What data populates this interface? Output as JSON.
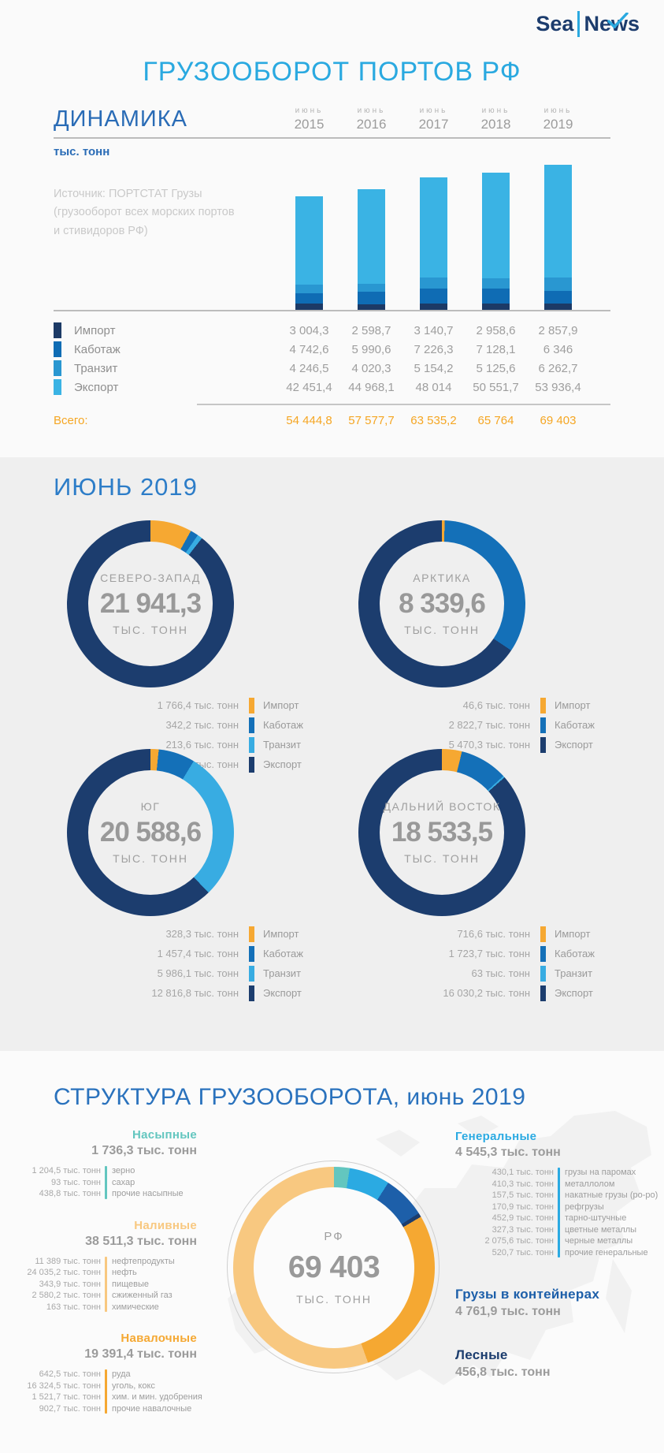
{
  "brand": {
    "sea": "Sea",
    "news": "News"
  },
  "page_title": "ГРУЗООБОРОТ ПОРТОВ РФ",
  "palette": {
    "bar": {
      "import": "#1c3a66",
      "cabotage": "#0f6cb4",
      "transit": "#2997d1",
      "export": "#3ab3e4"
    },
    "region": {
      "import": "#f6a832",
      "cabotage": "#1470b8",
      "transit": "#38ace2",
      "export": "#1c3d6e"
    },
    "accent_orange": "#f5a623"
  },
  "dynamics": {
    "title": "ДИНАМИКА",
    "unit": "тыс. тонн",
    "source": "Источник: ПОРТСТАТ Грузы\n(грузооборот всех морских портов\nи стивидоров РФ)",
    "month_label": "июнь",
    "years": [
      "2015",
      "2016",
      "2017",
      "2018",
      "2019"
    ],
    "total_label": "Всего:"
  },
  "june": {
    "title": "ИЮНЬ 2019",
    "unit": "ТЫС. ТОНН"
  },
  "structure": {
    "title": "СТРУКТУРА ГРУЗООБОРОТА, июнь 2019",
    "center": {
      "label": "РФ",
      "value": "69 403",
      "unit": "ТЫС. ТОНН"
    }
  },
  "chart_data": [
    {
      "id": "dynamics-bars",
      "type": "bar",
      "stacked": true,
      "title": "ДИНАМИКА",
      "ylabel": "тыс. тонн",
      "categories": [
        "июнь 2015",
        "июнь 2016",
        "июнь 2017",
        "июнь 2018",
        "июнь 2019"
      ],
      "series": [
        {
          "key": "import",
          "name": "Импорт",
          "values": [
            3004.3,
            2598.7,
            3140.7,
            2958.6,
            2857.9
          ],
          "display": [
            "3 004,3",
            "2 598,7",
            "3 140,7",
            "2 958,6",
            "2 857,9"
          ]
        },
        {
          "key": "cabotage",
          "name": "Каботаж",
          "values": [
            4742.6,
            5990.6,
            7226.3,
            7128.1,
            6346
          ],
          "display": [
            "4 742,6",
            "5 990,6",
            "7 226,3",
            "7 128,1",
            "6 346"
          ]
        },
        {
          "key": "transit",
          "name": "Транзит",
          "values": [
            4246.5,
            4020.3,
            5154.2,
            5125.6,
            6262.7
          ],
          "display": [
            "4 246,5",
            "4 020,3",
            "5 154,2",
            "5 125,6",
            "6 262,7"
          ]
        },
        {
          "key": "export",
          "name": "Экспорт",
          "values": [
            42451.4,
            44968.1,
            48014,
            50551.7,
            53936.4
          ],
          "display": [
            "42 451,4",
            "44 968,1",
            "48 014",
            "50 551,7",
            "53 936,4"
          ]
        }
      ],
      "totals": {
        "label": "Всего:",
        "values": [
          54444.8,
          57577.7,
          63535.2,
          65764,
          69403
        ],
        "display": [
          "54 444,8",
          "57 577,7",
          "63 535,2",
          "65 764",
          "69 403"
        ]
      }
    },
    {
      "id": "region-donuts",
      "type": "pie",
      "unit": "ТЫС. ТОНН",
      "regions": [
        {
          "name": "СЕВЕРО-ЗАПАД",
          "total": 21941.3,
          "total_display": "21 941,3",
          "segments": [
            {
              "key": "import",
              "name": "Импорт",
              "value": 1766.4,
              "display": "1 766,4 тыс. тонн"
            },
            {
              "key": "cabotage",
              "name": "Каботаж",
              "value": 342.2,
              "display": "342,2 тыс. тонн"
            },
            {
              "key": "transit",
              "name": "Транзит",
              "value": 213.6,
              "display": "213,6 тыс. тонн"
            },
            {
              "key": "export",
              "name": "Экспорт",
              "value": 19619.1,
              "display": "19 619,1 тыс. тонн"
            }
          ]
        },
        {
          "name": "АРКТИКА",
          "total": 8339.6,
          "total_display": "8 339,6",
          "segments": [
            {
              "key": "import",
              "name": "Импорт",
              "value": 46.6,
              "display": "46,6 тыс. тонн"
            },
            {
              "key": "cabotage",
              "name": "Каботаж",
              "value": 2822.7,
              "display": "2 822,7 тыс. тонн"
            },
            {
              "key": "export",
              "name": "Экспорт",
              "value": 5470.3,
              "display": "5 470,3 тыс. тонн"
            }
          ]
        },
        {
          "name": "ЮГ",
          "total": 20588.6,
          "total_display": "20 588,6",
          "segments": [
            {
              "key": "import",
              "name": "Импорт",
              "value": 328.3,
              "display": "328,3 тыс. тонн"
            },
            {
              "key": "cabotage",
              "name": "Каботаж",
              "value": 1457.4,
              "display": "1 457,4 тыс. тонн"
            },
            {
              "key": "transit",
              "name": "Транзит",
              "value": 5986.1,
              "display": "5 986,1 тыс. тонн"
            },
            {
              "key": "export",
              "name": "Экспорт",
              "value": 12816.8,
              "display": "12 816,8 тыс. тонн"
            }
          ]
        },
        {
          "name": "ДАЛЬНИЙ ВОСТОК",
          "total": 18533.5,
          "total_display": "18 533,5",
          "segments": [
            {
              "key": "import",
              "name": "Импорт",
              "value": 716.6,
              "display": "716,6 тыс. тонн"
            },
            {
              "key": "cabotage",
              "name": "Каботаж",
              "value": 1723.7,
              "display": "1 723,7 тыс. тонн"
            },
            {
              "key": "transit",
              "name": "Транзит",
              "value": 63,
              "display": "63 тыс. тонн"
            },
            {
              "key": "export",
              "name": "Экспорт",
              "value": 16030.2,
              "display": "16 030,2 тыс. тонн"
            }
          ]
        }
      ]
    },
    {
      "id": "structure-donut",
      "type": "pie",
      "title": "СТРУКТУРА ГРУЗООБОРОТА, июнь 2019",
      "center_label": "РФ",
      "total": 69403,
      "total_display": "69 403",
      "unit": "ТЫС. ТОНН",
      "groups": [
        {
          "name": "Насыпные",
          "color": "#63c6bf",
          "value": 1736.3,
          "total_display": "1 736,3 тыс. тонн",
          "side": "left",
          "items": [
            {
              "display": "1 204,5 тыс. тонн",
              "label": "зерно"
            },
            {
              "display": "93 тыс. тонн",
              "label": "сахар"
            },
            {
              "display": "438,8 тыс. тонн",
              "label": "прочие насыпные"
            }
          ]
        },
        {
          "name": "Наливные",
          "color": "#f8c880",
          "value": 38511.3,
          "total_display": "38 511,3 тыс. тонн",
          "side": "left",
          "items": [
            {
              "display": "11 389 тыс. тонн",
              "label": "нефтепродукты"
            },
            {
              "display": "24 035,2 тыс. тонн",
              "label": "нефть"
            },
            {
              "display": "343,9 тыс. тонн",
              "label": "пищевые"
            },
            {
              "display": "2 580,2 тыс. тонн",
              "label": "сжиженный газ"
            },
            {
              "display": "163 тыс. тонн",
              "label": "химические"
            }
          ]
        },
        {
          "name": "Навалочные",
          "color": "#f5a832",
          "value": 19391.4,
          "total_display": "19 391,4 тыс. тонн",
          "side": "left",
          "items": [
            {
              "display": "642,5 тыс. тонн",
              "label": "руда"
            },
            {
              "display": "16 324,5 тыс. тонн",
              "label": "уголь, кокс"
            },
            {
              "display": "1 521,7 тыс. тонн",
              "label": "хим. и мин. удобрения"
            },
            {
              "display": "902,7 тыс. тонн",
              "label": "прочие навалочные"
            }
          ]
        },
        {
          "name": "Генеральные",
          "color": "#2baae2",
          "value": 4545.3,
          "total_display": "4 545,3 тыс. тонн",
          "side": "right",
          "items": [
            {
              "display": "430,1 тыс. тонн",
              "label": "грузы на паромах"
            },
            {
              "display": "410,3 тыс. тонн",
              "label": "металлолом"
            },
            {
              "display": "157,5 тыс. тонн",
              "label": "накатные грузы (ро-ро)"
            },
            {
              "display": "170,9 тыс. тонн",
              "label": "рефгрузы"
            },
            {
              "display": "452,9 тыс. тонн",
              "label": "тарно-штучные"
            },
            {
              "display": "327,3 тыс. тонн",
              "label": "цветные металлы"
            },
            {
              "display": "2 075,6 тыс. тонн",
              "label": "черные металлы"
            },
            {
              "display": "520,7 тыс. тонн",
              "label": "прочие генеральные"
            }
          ]
        },
        {
          "name": "Грузы в контейнерах",
          "color": "#1d5fa9",
          "value": 4761.9,
          "total_display": "4 761,9 тыс. тонн",
          "side": "right",
          "items": []
        },
        {
          "name": "Лесные",
          "color": "#1c3d6e",
          "value": 456.8,
          "total_display": "456,8 тыс. тонн",
          "side": "right",
          "items": []
        }
      ],
      "donut_order": [
        0,
        3,
        4,
        5,
        2,
        1
      ]
    }
  ]
}
